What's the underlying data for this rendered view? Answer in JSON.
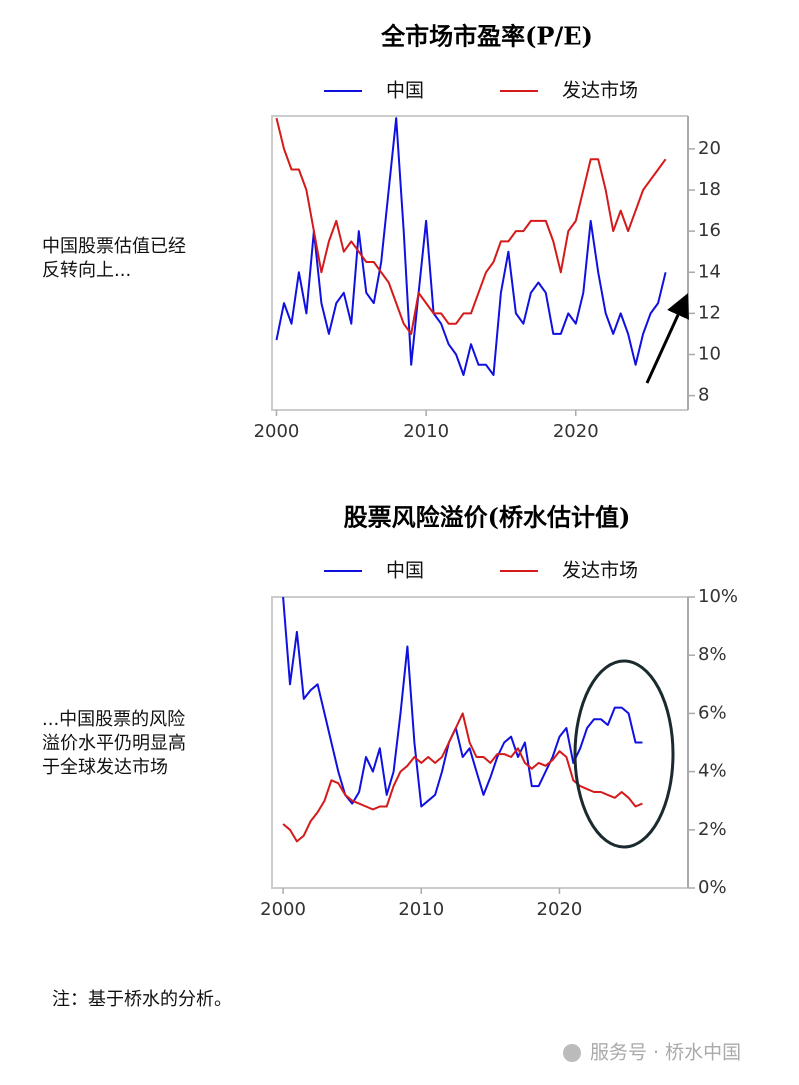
{
  "chart_data": [
    {
      "type": "line",
      "title": "全市场市盈率(P/E)",
      "annotation": [
        "中国股票估值已经",
        "反转向上..."
      ],
      "legend": "top",
      "y_axis_position": "right",
      "x": [
        2000,
        2000.5,
        2001,
        2001.5,
        2002,
        2002.5,
        2003,
        2003.5,
        2004,
        2004.5,
        2005,
        2005.5,
        2006,
        2006.5,
        2007,
        2007.5,
        2008,
        2008.5,
        2009,
        2009.5,
        2010,
        2010.5,
        2011,
        2011.5,
        2012,
        2012.5,
        2013,
        2013.5,
        2014,
        2014.5,
        2015,
        2015.5,
        2016,
        2016.5,
        2017,
        2017.5,
        2018,
        2018.5,
        2019,
        2019.5,
        2020,
        2020.5,
        2021,
        2021.5,
        2022,
        2022.5,
        2023,
        2023.5,
        2024,
        2024.5,
        2025,
        2025.5,
        2026
      ],
      "series": [
        {
          "name": "中国",
          "color": "#1010e0",
          "values": [
            10.7,
            12.5,
            11.5,
            14,
            12,
            16,
            12.5,
            11,
            12.5,
            13,
            11.5,
            16,
            13,
            12.5,
            14.5,
            18,
            21.5,
            16,
            9.5,
            13,
            16.5,
            12,
            11.5,
            10.5,
            10,
            9,
            10.5,
            9.5,
            9.5,
            9,
            13,
            15,
            12,
            11.5,
            13,
            13.5,
            13,
            11,
            11,
            12,
            11.5,
            13,
            16.5,
            14,
            12,
            11,
            12,
            11,
            9.5,
            11,
            12,
            12.5,
            14
          ]
        },
        {
          "name": "发达市场",
          "color": "#d41a1a",
          "values": [
            21.5,
            20,
            19,
            19,
            18,
            16,
            14,
            15.5,
            16.5,
            15,
            15.5,
            15,
            14.5,
            14.5,
            14,
            13.5,
            12.5,
            11.5,
            11,
            13,
            12.5,
            12,
            12,
            11.5,
            11.5,
            12,
            12,
            13,
            14,
            14.5,
            15.5,
            15.5,
            16,
            16,
            16.5,
            16.5,
            16.5,
            15.5,
            14,
            16,
            16.5,
            18,
            19.5,
            19.5,
            18,
            16,
            17,
            16,
            17,
            18,
            18.5,
            19,
            19.5
          ]
        }
      ],
      "xlim": [
        1999.7,
        2027.5
      ],
      "xticks": [
        2000,
        2010,
        2020
      ],
      "ylim": [
        7.3,
        21.6
      ],
      "yticks": [
        8,
        10,
        12,
        14,
        16,
        18,
        20
      ]
    },
    {
      "type": "line",
      "title": "股票风险溢价(桥水估计值)",
      "annotation": [
        "...中国股票的风险",
        "溢价水平仍明显高",
        "于全球发达市场"
      ],
      "legend": "top",
      "y_axis_position": "right",
      "x": [
        2000,
        2000.5,
        2001,
        2001.5,
        2002,
        2002.5,
        2003,
        2003.5,
        2004,
        2004.5,
        2005,
        2005.5,
        2006,
        2006.5,
        2007,
        2007.5,
        2008,
        2008.5,
        2009,
        2009.5,
        2010,
        2010.5,
        2011,
        2011.5,
        2012,
        2012.5,
        2013,
        2013.5,
        2014,
        2014.5,
        2015,
        2015.5,
        2016,
        2016.5,
        2017,
        2017.5,
        2018,
        2018.5,
        2019,
        2019.5,
        2020,
        2020.5,
        2021,
        2021.5,
        2022,
        2022.5,
        2023,
        2023.5,
        2024,
        2024.5,
        2025,
        2025.5,
        2026
      ],
      "series": [
        {
          "name": "中国",
          "color": "#1010e0",
          "values": [
            10,
            7,
            8.8,
            6.5,
            6.8,
            7,
            6,
            5,
            4,
            3.2,
            2.9,
            3.3,
            4.5,
            4,
            4.8,
            3.2,
            4,
            6,
            8.3,
            5,
            2.8,
            3,
            3.2,
            4,
            5,
            5.5,
            4.5,
            4.8,
            4,
            3.2,
            3.8,
            4.5,
            5,
            5.2,
            4.5,
            5,
            3.5,
            3.5,
            4,
            4.5,
            5.2,
            5.5,
            4.3,
            4.8,
            5.5,
            5.8,
            5.8,
            5.6,
            6.2,
            6.2,
            6,
            5,
            5
          ]
        },
        {
          "name": "发达市场",
          "color": "#d41a1a",
          "values": [
            2.2,
            2,
            1.6,
            1.8,
            2.3,
            2.6,
            3,
            3.7,
            3.6,
            3.2,
            3,
            2.9,
            2.8,
            2.7,
            2.8,
            2.8,
            3.5,
            4,
            4.2,
            4.5,
            4.3,
            4.5,
            4.3,
            4.5,
            5,
            5.5,
            6,
            5,
            4.5,
            4.5,
            4.3,
            4.6,
            4.6,
            4.5,
            4.8,
            4.3,
            4.1,
            4.3,
            4.2,
            4.4,
            4.7,
            4.5,
            3.7,
            3.5,
            3.4,
            3.3,
            3.3,
            3.2,
            3.1,
            3.3,
            3.1,
            2.8,
            2.9
          ]
        }
      ],
      "xlim": [
        1999.2,
        2029.3
      ],
      "xticks": [
        2000,
        2010,
        2020
      ],
      "ylim": [
        0,
        10
      ],
      "yticks": [
        {
          "value": 0,
          "label": "0%"
        },
        {
          "value": 2,
          "label": "2%"
        },
        {
          "value": 4,
          "label": "4%"
        },
        {
          "value": 6,
          "label": "6%"
        },
        {
          "value": 8,
          "label": "8%"
        },
        {
          "value": 10,
          "label": "10%"
        }
      ]
    }
  ],
  "note": "注：基于桥水的分析。",
  "watermark": "服务号 · 桥水中国"
}
